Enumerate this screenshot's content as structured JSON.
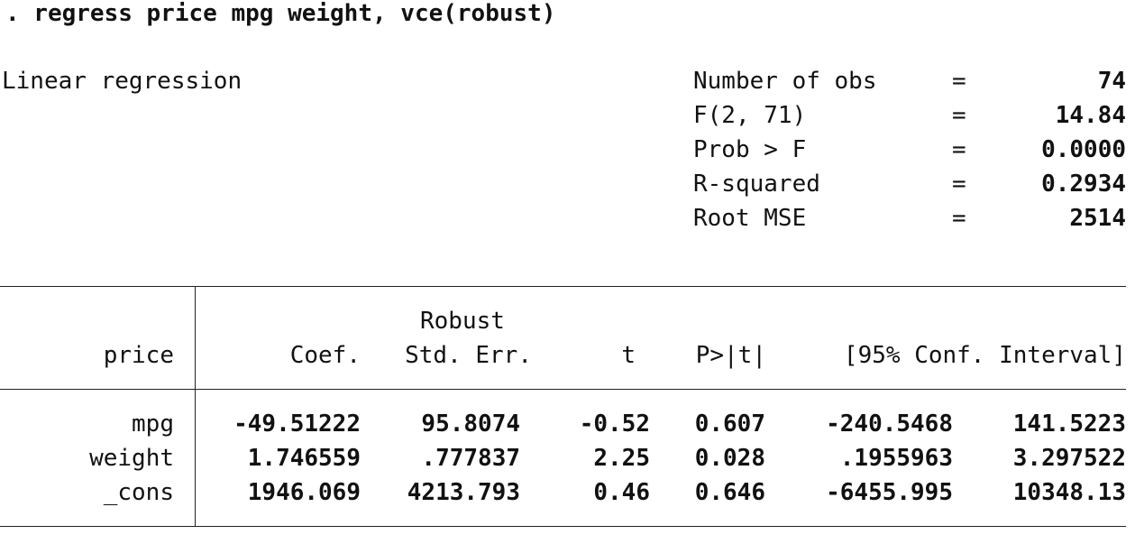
{
  "command": ". regress price mpg weight, vce(robust)",
  "model_title": "Linear regression",
  "stats": [
    {
      "label": "Number of obs",
      "eq": "=",
      "value": "74"
    },
    {
      "label": "F(2, 71)",
      "eq": "=",
      "value": "14.84"
    },
    {
      "label": "Prob > F",
      "eq": "=",
      "value": "0.0000"
    },
    {
      "label": "R-squared",
      "eq": "=",
      "value": "0.2934"
    },
    {
      "label": "Root MSE",
      "eq": "=",
      "value": "2514"
    }
  ],
  "table": {
    "depvar": "price",
    "header_top": "Robust",
    "columns": [
      "Coef.",
      "Std. Err.",
      "t",
      "P>|t|",
      "[95% Conf. Interval]"
    ],
    "rows": [
      {
        "name": "mpg",
        "coef": "-49.51222",
        "se": "95.8074",
        "t": "-0.52",
        "p": "0.607",
        "ci_low": "-240.5468",
        "ci_high": "141.5223"
      },
      {
        "name": "weight",
        "coef": "1.746559",
        "se": ".777837",
        "t": "2.25",
        "p": "0.028",
        "ci_low": ".1955963",
        "ci_high": "3.297522"
      },
      {
        "name": "_cons",
        "coef": "1946.069",
        "se": "4213.793",
        "t": "0.46",
        "p": "0.646",
        "ci_low": "-6455.995",
        "ci_high": "10348.13"
      }
    ]
  }
}
